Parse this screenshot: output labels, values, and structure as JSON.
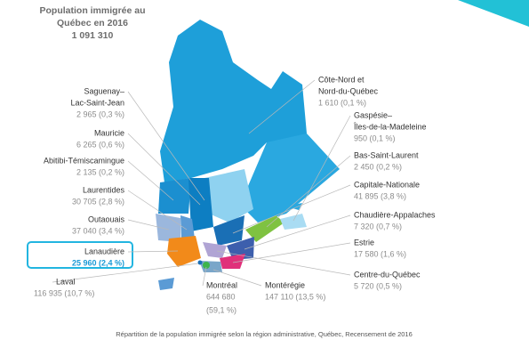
{
  "title": [
    "Population immigrée au",
    "Québec en 2016",
    "1 091 310"
  ],
  "regions": [
    {
      "name": [
        "Saguenay–",
        "Lac-Saint-Jean"
      ],
      "value": [
        "2 965 (0,3 %)"
      ]
    },
    {
      "name": [
        "Mauricie"
      ],
      "value": [
        "6 265 (0,6 %)"
      ]
    },
    {
      "name": [
        "Abitibi-Témiscamingue"
      ],
      "value": [
        "2 135 (0,2 %)"
      ]
    },
    {
      "name": [
        "Laurentides"
      ],
      "value": [
        "30 705 (2,8 %)"
      ]
    },
    {
      "name": [
        "Outaouais"
      ],
      "value": [
        "37 040 (3,4 %)"
      ]
    },
    {
      "name": [
        "Lanaudière"
      ],
      "value": [
        "25 960 (2,4 %)"
      ]
    },
    {
      "name": [
        "Laval"
      ],
      "value": [
        "116 935 (10,7 %)"
      ]
    },
    {
      "name": [
        "Montréal"
      ],
      "value": [
        "644 680",
        "(59,1 %)"
      ]
    },
    {
      "name": [
        "Montérégie"
      ],
      "value": [
        "147 110 (13,5 %)"
      ]
    },
    {
      "name": [
        "Côte-Nord et",
        "Nord-du-Québec"
      ],
      "value": [
        "1 610 (0,1 %)"
      ]
    },
    {
      "name": [
        "Gaspésie–",
        "Îles-de-la-Madeleine"
      ],
      "value": [
        "950 (0,1 %)"
      ]
    },
    {
      "name": [
        "Bas-Saint-Laurent"
      ],
      "value": [
        "2 450 (0,2 %)"
      ]
    },
    {
      "name": [
        "Capitale-Nationale"
      ],
      "value": [
        "41 895 (3,8 %)"
      ]
    },
    {
      "name": [
        "Chaudière-Appalaches"
      ],
      "value": [
        "7 320 (0,7 %)"
      ]
    },
    {
      "name": [
        "Estrie"
      ],
      "value": [
        "17 580 (1,6 %)"
      ]
    },
    {
      "name": [
        "Centre-du-Québec"
      ],
      "value": [
        "5 720 (0,5 %)"
      ]
    }
  ],
  "caption": "Répartition de la population immigrée selon la région administrative, Québec, Recensement de 2016"
}
